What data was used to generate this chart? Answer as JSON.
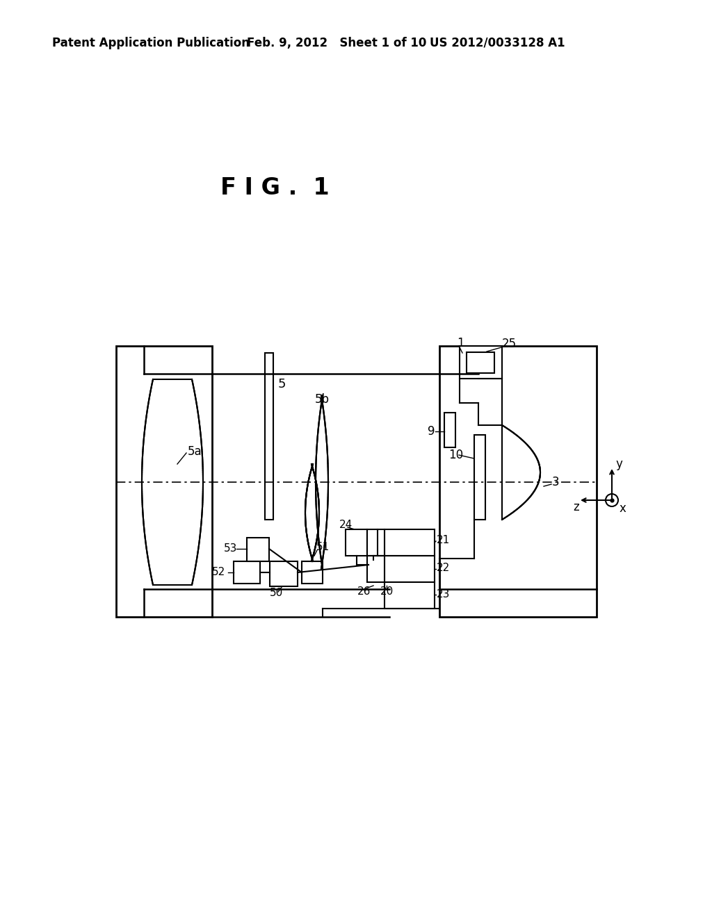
{
  "title": "F I G .  1",
  "header_left": "Patent Application Publication",
  "header_center": "Feb. 9, 2012   Sheet 1 of 10",
  "header_right": "US 2012/0033128 A1",
  "background": "#ffffff",
  "line_color": "#000000",
  "fig_size": [
    10.24,
    13.2
  ],
  "dpi": 100
}
